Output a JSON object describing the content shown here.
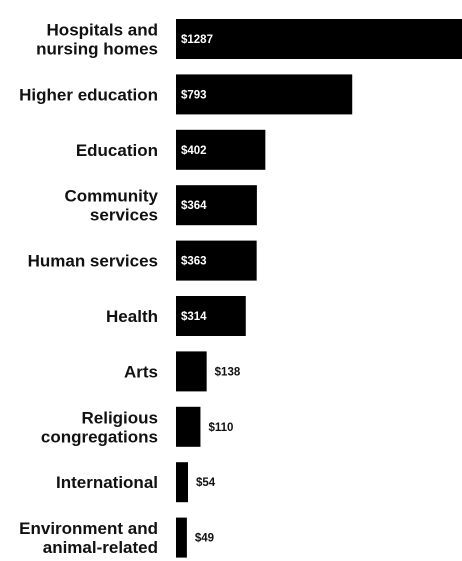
{
  "chart_data": {
    "type": "bar",
    "orientation": "horizontal",
    "title": "",
    "xlabel": "",
    "ylabel": "",
    "categories": [
      [
        "Hospitals and",
        "nursing homes"
      ],
      [
        "Higher education"
      ],
      [
        "Education"
      ],
      [
        "Community",
        "services"
      ],
      [
        "Human services"
      ],
      [
        "Health"
      ],
      [
        "Arts"
      ],
      [
        "Religious",
        "congregations"
      ],
      [
        "International"
      ],
      [
        "Environment and",
        "animal-related"
      ]
    ],
    "values": [
      1287,
      793,
      402,
      364,
      363,
      314,
      138,
      110,
      54,
      49
    ],
    "value_labels": [
      "$1287",
      "$793",
      "$402",
      "$364",
      "$363",
      "$314",
      "$138",
      "$110",
      "$54",
      "$49"
    ],
    "xlim": [
      0,
      1287
    ],
    "grid": false,
    "legend": "none",
    "colors": {
      "bar": "#000000",
      "label_inside": "#ffffff",
      "label_outside": "#111111",
      "background": "#ffffff"
    }
  }
}
